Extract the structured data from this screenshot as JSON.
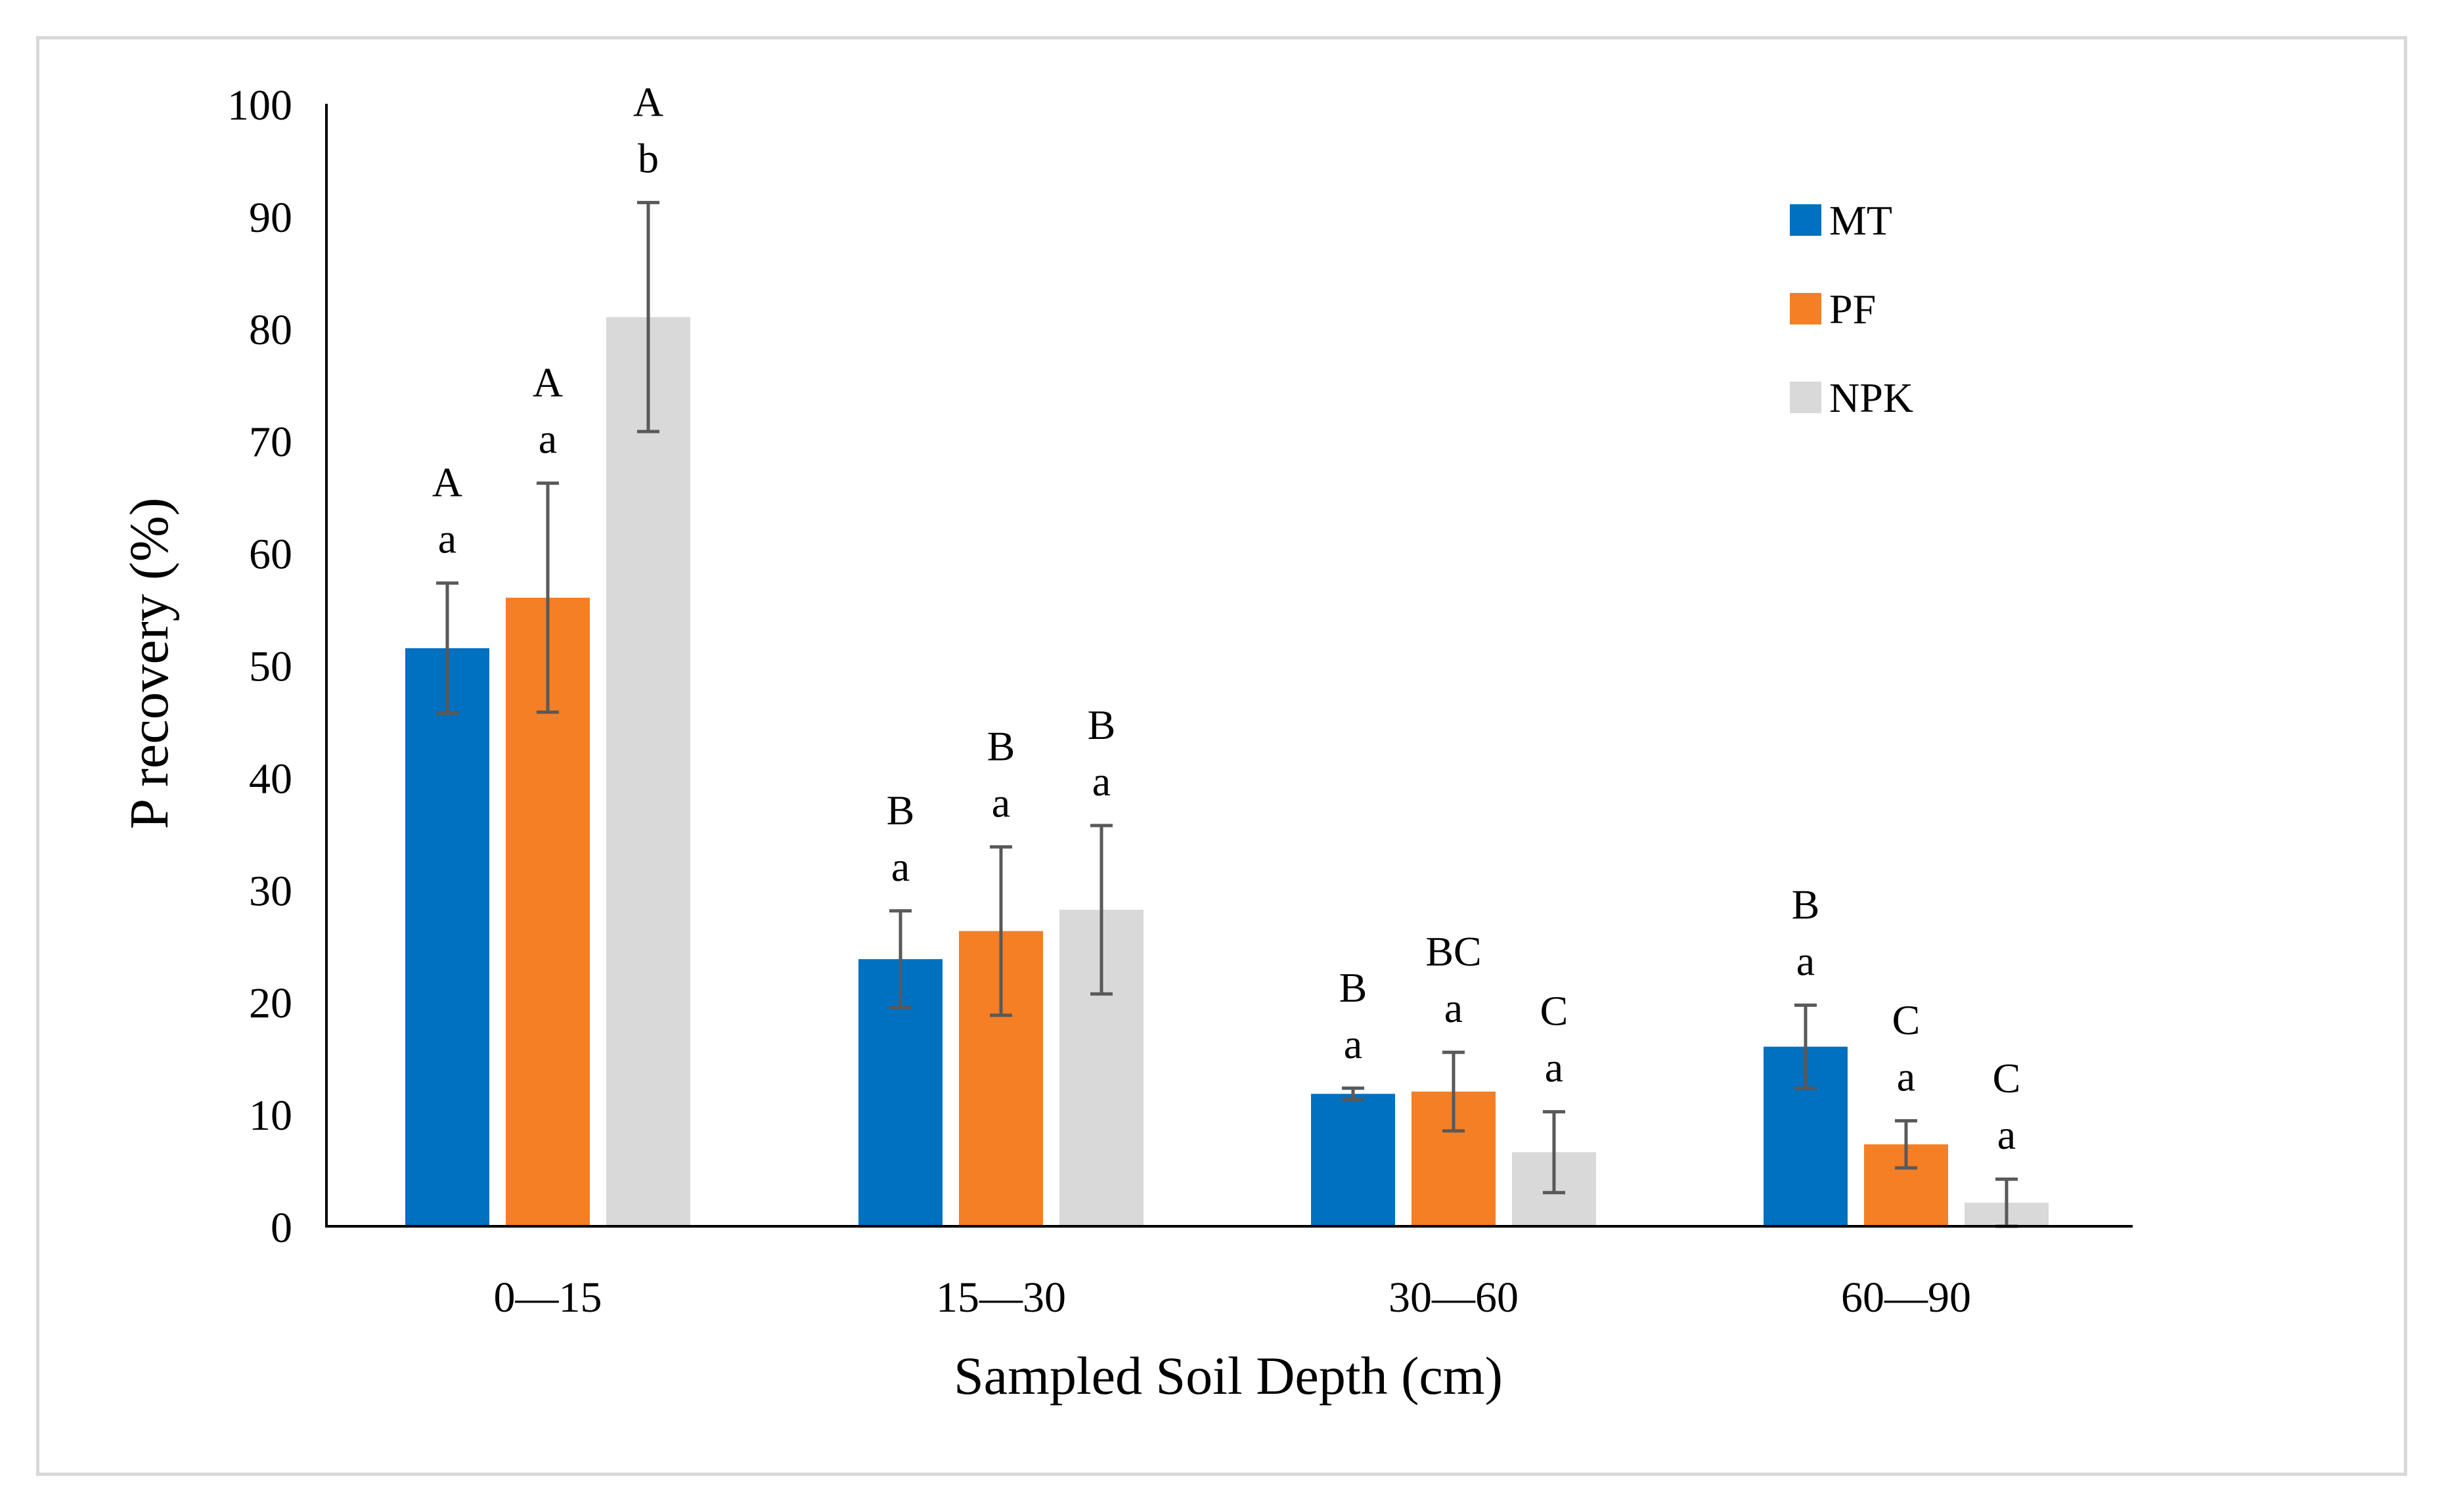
{
  "chart_data": {
    "type": "bar",
    "title": "",
    "xlabel": "Sampled Soil Depth (cm)",
    "ylabel": "P recovery (%)",
    "ylim": [
      0,
      100
    ],
    "yticks": [
      "0",
      "10",
      "20",
      "30",
      "40",
      "50",
      "60",
      "70",
      "80",
      "90",
      "100"
    ],
    "categories": [
      "0—15",
      "15—30",
      "30—60",
      "60—90"
    ],
    "grid": false,
    "legend_position": "top-right",
    "series": [
      {
        "name": "MT",
        "color": "#0070c0",
        "values": [
          51.5,
          23.8,
          11.8,
          16.0
        ],
        "error": [
          5.8,
          4.3,
          0.5,
          3.7
        ],
        "letters_upper": [
          "A",
          "B",
          "B",
          "B"
        ],
        "letters_lower": [
          "a",
          "a",
          "a",
          "a"
        ]
      },
      {
        "name": "PF",
        "color": "#f47f25",
        "values": [
          56.0,
          26.3,
          12.0,
          7.3
        ],
        "error": [
          10.2,
          7.5,
          3.5,
          2.1
        ],
        "letters_upper": [
          "A",
          "B",
          "BC",
          "C"
        ],
        "letters_lower": [
          "a",
          "a",
          "a",
          "a"
        ]
      },
      {
        "name": "NPK",
        "color": "#d9d9d9",
        "values": [
          81.0,
          28.2,
          6.6,
          2.1
        ],
        "error": [
          10.2,
          7.5,
          3.6,
          2.1
        ],
        "letters_upper": [
          "A",
          "B",
          "C",
          "C"
        ],
        "letters_lower": [
          "b",
          "a",
          "a",
          "a"
        ]
      }
    ]
  }
}
